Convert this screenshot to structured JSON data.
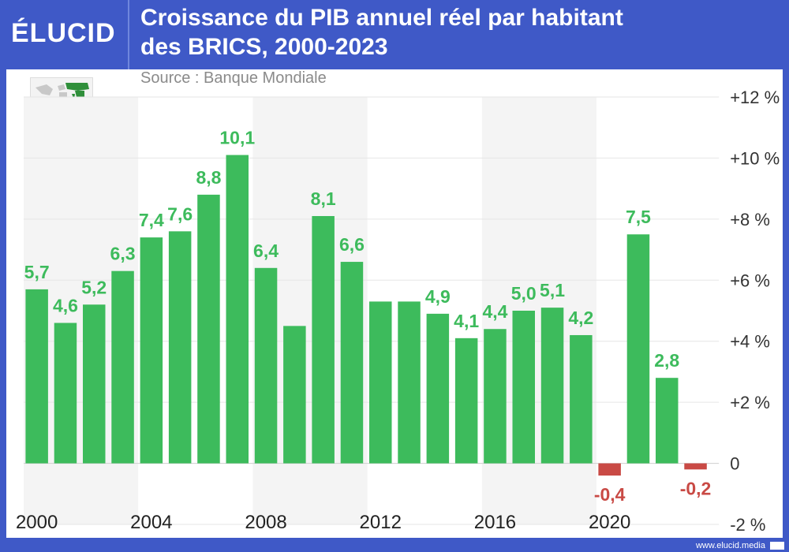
{
  "header": {
    "logo": "ÉLUCID",
    "title_line1": "Croissance du PIB annuel réel par habitant",
    "title_line2": "des BRICS, 2000-2023"
  },
  "source": "Source : Banque Mondiale",
  "footer": {
    "url": "www.elucid.media"
  },
  "colors": {
    "positive": "#3dbb5c",
    "negative": "#c94a45",
    "header": "#3f59c7",
    "label_positive": "#3dbb5c",
    "label_negative": "#c94a45"
  },
  "chart_data": {
    "type": "bar",
    "categories": [
      "2000",
      "2001",
      "2002",
      "2003",
      "2004",
      "2005",
      "2006",
      "2007",
      "2008",
      "2009",
      "2010",
      "2011",
      "2012",
      "2013",
      "2014",
      "2015",
      "2016",
      "2017",
      "2018",
      "2019",
      "2020",
      "2021",
      "2022",
      "2023"
    ],
    "values": [
      5.7,
      4.6,
      5.2,
      6.3,
      7.4,
      7.6,
      8.8,
      10.1,
      6.4,
      4.5,
      8.1,
      6.6,
      5.3,
      5.3,
      4.9,
      4.1,
      4.4,
      5.0,
      5.1,
      4.2,
      -0.4,
      7.5,
      2.8,
      -0.2
    ],
    "data_labels": [
      "5,7",
      "4,6",
      "5,2",
      "6,3",
      "7,4",
      "7,6",
      "8,8",
      "10,1",
      "6,4",
      "",
      "8,1",
      "6,6",
      "",
      "",
      "4,9",
      "4,1",
      "4,4",
      "5,0",
      "5,1",
      "4,2",
      "-0,4",
      "7,5",
      "2,8",
      "-0,2"
    ],
    "x_tick_labels": [
      "2000",
      "2004",
      "2008",
      "2012",
      "2016",
      "2020"
    ],
    "x_tick_years": [
      2000,
      2004,
      2008,
      2012,
      2016,
      2020
    ],
    "y_ticks": [
      -2,
      0,
      2,
      4,
      6,
      8,
      10,
      12
    ],
    "y_tick_labels": [
      "-2 %",
      "0",
      "+2 %",
      "+4 %",
      "+6 %",
      "+8 %",
      "+10 %",
      "+12 %"
    ],
    "ylim": [
      -2,
      12
    ],
    "title": "Croissance du PIB annuel réel par habitant des BRICS, 2000-2023",
    "xlabel": "",
    "ylabel": "",
    "grid": true,
    "legend": "none"
  }
}
